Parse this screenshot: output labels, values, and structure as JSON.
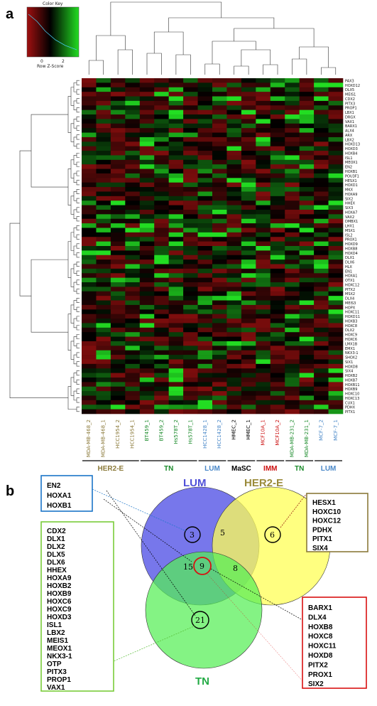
{
  "panel_a": {
    "letter": "a",
    "color_key": {
      "title": "Color Key",
      "xlabel": "Row Z-Score",
      "ticks": [
        "0",
        "2"
      ]
    },
    "genes": [
      "PAX3",
      "HOXD12",
      "DLX5",
      "MEIS1",
      "CDX2",
      "PITX3",
      "PROP1",
      "LBX1",
      "DRGX",
      "VAX1",
      "BARX1",
      "ALX4",
      "ARX",
      "LBX2",
      "HOXD13",
      "HOXD3",
      "HOXB4",
      "ISL1",
      "MEOX1",
      "EN2",
      "HOXB1",
      "POU3F1",
      "HESX1",
      "HOXD1",
      "MKX",
      "HOXA9",
      "SIX2",
      "HHEX",
      "SIX3",
      "HOXA7",
      "VAX2",
      "DMBX1",
      "LHX1",
      "MSX1",
      "ISL2",
      "PROX1",
      "HOXD9",
      "HOXB8",
      "HOXD4",
      "DLX1",
      "DLX6",
      "HLX",
      "EN1",
      "HOXA1",
      "OTX1",
      "HOXC12",
      "PITX2",
      "MSX2",
      "DLX4",
      "MEIS3",
      "HOPX",
      "HOXC11",
      "HOXD11",
      "HOXB3",
      "HOXC8",
      "DLX2",
      "HOXC9",
      "HOXC6",
      "LMX1B",
      "EMX1",
      "NKX3-1",
      "SHOX2",
      "SIX1",
      "HOXD8",
      "SIX4",
      "HOXB2",
      "HOXB7",
      "HOXB11",
      "HOXB9",
      "HOXC10",
      "HOXC13",
      "CUX1",
      "PDHX",
      "PITX1"
    ],
    "samples": [
      "MDA-MB-468_2",
      "MDA-MB-468_1",
      "HCC1954_2",
      "HCC1954_1",
      "BT459_1",
      "BT459_2",
      "Hs578T_2",
      "Hs578T_1",
      "HCC1428_1",
      "HCC1428_2",
      "HMEC_2",
      "HMEC_1",
      "MCF10A_1",
      "MCF10A_2",
      "MDA-MB-231_2",
      "MDA-MB-231_1",
      "MCF-7_2",
      "MCF-7_1"
    ],
    "groups": [
      {
        "label": "HER2-E",
        "color": "#8b7a3a",
        "start": 0,
        "end": 3
      },
      {
        "label": "TN",
        "color": "#1a8a2a",
        "start": 4,
        "end": 7
      },
      {
        "label": "LUM",
        "color": "#4a88c8",
        "start": 8,
        "end": 9
      },
      {
        "label": "MaSC",
        "color": "#000000",
        "start": 10,
        "end": 11
      },
      {
        "label": "IMM",
        "color": "#cc1111",
        "start": 12,
        "end": 13
      },
      {
        "label": "TN",
        "color": "#1a8a2a",
        "start": 14,
        "end": 15
      },
      {
        "label": "LUM",
        "color": "#4a88c8",
        "start": 16,
        "end": 17
      }
    ],
    "colors": {
      "high": "#22dd22",
      "mid": "#000000",
      "low": "#a01010"
    }
  },
  "panel_b": {
    "letter": "b",
    "sets": [
      {
        "label": "LUM",
        "color": "#5050d8"
      },
      {
        "label": "HER2-E",
        "color": "#9a8a3a"
      },
      {
        "label": "TN",
        "color": "#22aa44"
      }
    ],
    "counts": {
      "lum_only": "3",
      "lum_her2": "5",
      "her2_only": "6",
      "lum_tn": "15",
      "all": "9",
      "her2_tn": "8",
      "tn_only": "21"
    },
    "lists": {
      "lum_only": [
        "EN2",
        "HOXA1",
        "HOXB1"
      ],
      "her2_only": [
        "HESX1",
        "HOXC10",
        "HOXC12",
        "PDHX",
        "PITX1",
        "SIX4"
      ],
      "tn_only": [
        "CDX2",
        "DLX1",
        "DLX2",
        "DLX5",
        "DLX6",
        "HHEX",
        "HOXA9",
        "HOXB2",
        "HOXB9",
        "HOXC6",
        "HOXC9",
        "HOXD3",
        "ISL1",
        "LBX2",
        "MEIS1",
        "MEOX1",
        "NKX3-1",
        "OTP",
        "PITX3",
        "PROP1",
        "VAX1"
      ],
      "all": [
        "BARX1",
        "DLX4",
        "HOXB8",
        "HOXC8",
        "HOXC11",
        "HOXD8",
        "PITX2",
        "PROX1",
        "SIX2"
      ]
    }
  }
}
